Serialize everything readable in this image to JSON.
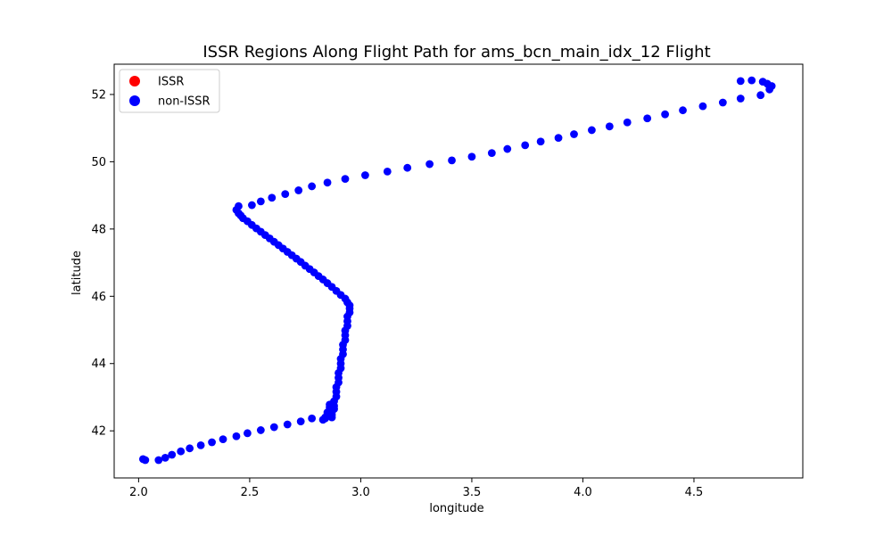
{
  "chart_data": {
    "type": "scatter",
    "title": "ISSR Regions Along Flight Path for ams_bcn_main_idx_12 Flight",
    "xlabel": "longitude",
    "ylabel": "latitude",
    "xlim": [
      1.89,
      4.99
    ],
    "ylim": [
      40.6,
      52.9
    ],
    "xticks": [
      2.0,
      2.5,
      3.0,
      3.5,
      4.0,
      4.5
    ],
    "xtick_labels": [
      "2.0",
      "2.5",
      "3.0",
      "3.5",
      "4.0",
      "4.5"
    ],
    "yticks": [
      42,
      44,
      46,
      48,
      50,
      52
    ],
    "ytick_labels": [
      "42",
      "44",
      "46",
      "48",
      "50",
      "52"
    ],
    "grid": false,
    "legend_position": "upper-left",
    "series": [
      {
        "name": "ISSR",
        "color": "#ff0000",
        "x": [],
        "y": []
      },
      {
        "name": "non-ISSR",
        "color": "#0000ff",
        "x": [
          4.84,
          4.85,
          4.83,
          4.81,
          4.76,
          4.71,
          4.8,
          4.71,
          4.63,
          4.54,
          4.45,
          4.37,
          4.29,
          4.2,
          4.12,
          4.04,
          3.96,
          3.89,
          3.81,
          3.74,
          3.66,
          3.59,
          3.5,
          3.41,
          3.31,
          3.21,
          3.12,
          3.02,
          2.93,
          2.85,
          2.78,
          2.72,
          2.66,
          2.6,
          2.55,
          2.51,
          2.45,
          2.44,
          2.45,
          2.46,
          2.47,
          2.49,
          2.51,
          2.53,
          2.55,
          2.57,
          2.59,
          2.61,
          2.63,
          2.65,
          2.67,
          2.69,
          2.71,
          2.73,
          2.75,
          2.77,
          2.79,
          2.81,
          2.83,
          2.85,
          2.87,
          2.89,
          2.91,
          2.93,
          2.94,
          2.95,
          2.95,
          2.95,
          2.94,
          2.94,
          2.94,
          2.93,
          2.93,
          2.93,
          2.92,
          2.92,
          2.92,
          2.91,
          2.91,
          2.91,
          2.9,
          2.9,
          2.9,
          2.89,
          2.89,
          2.89,
          2.88,
          2.88,
          2.88,
          2.87,
          2.87,
          2.87,
          2.86,
          2.86,
          2.86,
          2.85,
          2.85,
          2.85,
          2.84,
          2.84,
          2.83,
          2.78,
          2.73,
          2.67,
          2.61,
          2.55,
          2.49,
          2.44,
          2.38,
          2.33,
          2.28,
          2.23,
          2.19,
          2.15,
          2.12,
          2.09,
          2.03,
          2.02
        ],
        "y": [
          52.15,
          52.25,
          52.32,
          52.38,
          52.42,
          52.4,
          51.98,
          51.88,
          51.76,
          51.65,
          51.53,
          51.41,
          51.29,
          51.17,
          51.05,
          50.94,
          50.82,
          50.71,
          50.6,
          50.49,
          50.38,
          50.26,
          50.15,
          50.04,
          49.93,
          49.82,
          49.71,
          49.6,
          49.49,
          49.38,
          49.27,
          49.15,
          49.04,
          48.93,
          48.82,
          48.71,
          48.68,
          48.57,
          48.47,
          48.4,
          48.32,
          48.23,
          48.12,
          48.02,
          47.92,
          47.82,
          47.72,
          47.62,
          47.52,
          47.42,
          47.32,
          47.22,
          47.12,
          47.02,
          46.91,
          46.81,
          46.71,
          46.6,
          46.5,
          46.39,
          46.28,
          46.16,
          46.04,
          45.93,
          45.82,
          45.73,
          45.64,
          45.52,
          45.4,
          45.26,
          45.12,
          44.98,
          44.84,
          44.7,
          44.56,
          44.42,
          44.28,
          44.14,
          44.0,
          43.86,
          43.72,
          43.58,
          43.44,
          43.3,
          43.16,
          43.02,
          42.88,
          42.74,
          42.65,
          42.56,
          42.48,
          42.4,
          42.78,
          42.7,
          42.62,
          42.55,
          42.5,
          42.46,
          42.4,
          42.37,
          42.33,
          42.37,
          42.28,
          42.19,
          42.11,
          42.02,
          41.93,
          41.84,
          41.75,
          41.66,
          41.57,
          41.48,
          41.39,
          41.29,
          41.2,
          41.13,
          41.13,
          41.16
        ]
      }
    ]
  }
}
